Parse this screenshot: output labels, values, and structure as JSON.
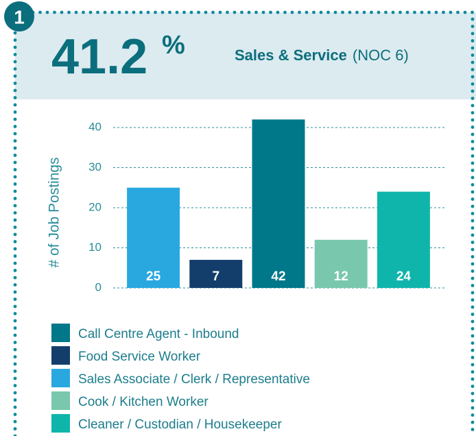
{
  "header": {
    "value": "41.2",
    "unit": "%",
    "sector": "Sales & Service",
    "code": "(NOC 6)",
    "badge": "1"
  },
  "chart_data": {
    "type": "bar",
    "y_label": "# of Job Postings",
    "values": [
      25,
      7,
      42,
      12,
      24
    ],
    "colors": [
      "#29a8e0",
      "#133e6b",
      "#00788a",
      "#79c8ad",
      "#0fb5ab"
    ],
    "ylim": [
      0,
      40
    ],
    "yticks": [
      0,
      10,
      20,
      30,
      40
    ],
    "grid": true,
    "legend": [
      {
        "name": "Call Centre Agent - Inbound",
        "color": "#00788a"
      },
      {
        "name": "Food Service Worker",
        "color": "#133e6b"
      },
      {
        "name": "Sales Associate / Clerk / Representative",
        "color": "#29a8e0"
      },
      {
        "name": "Cook / Kitchen Worker",
        "color": "#79c8ad"
      },
      {
        "name": "Cleaner / Custodian / Housekeeper",
        "color": "#0fb5ab"
      }
    ]
  }
}
